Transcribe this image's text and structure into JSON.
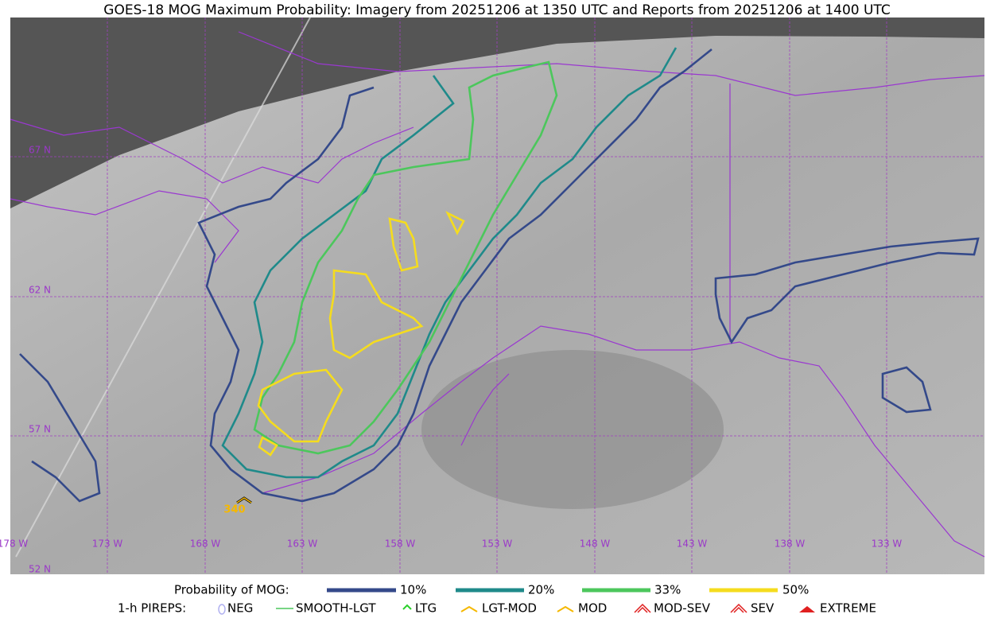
{
  "title": "GOES-18 MOG Maximum Probability: Imagery from 20251206 at 1350 UTC and Reports from 20251206 at 1400 UTC",
  "grid_labels": {
    "lat": [
      "67 N",
      "62 N",
      "57 N",
      "52 N"
    ],
    "lon": [
      "178 W",
      "173 W",
      "168 W",
      "163 W",
      "158 W",
      "153 W",
      "148 W",
      "143 W",
      "138 W",
      "133 W"
    ]
  },
  "reports": [
    {
      "label": "340"
    }
  ],
  "legend": {
    "probability_title": "Probability of MOG:",
    "probability_items": [
      "10%",
      "20%",
      "33%",
      "50%"
    ],
    "pireps_title": "1-h PIREPS:",
    "pireps_items": [
      "NEG",
      "SMOOTH-LGT",
      "LTG",
      "LGT-MOD",
      "MOD",
      "MOD-SEV",
      "SEV",
      "EXTREME"
    ]
  }
}
